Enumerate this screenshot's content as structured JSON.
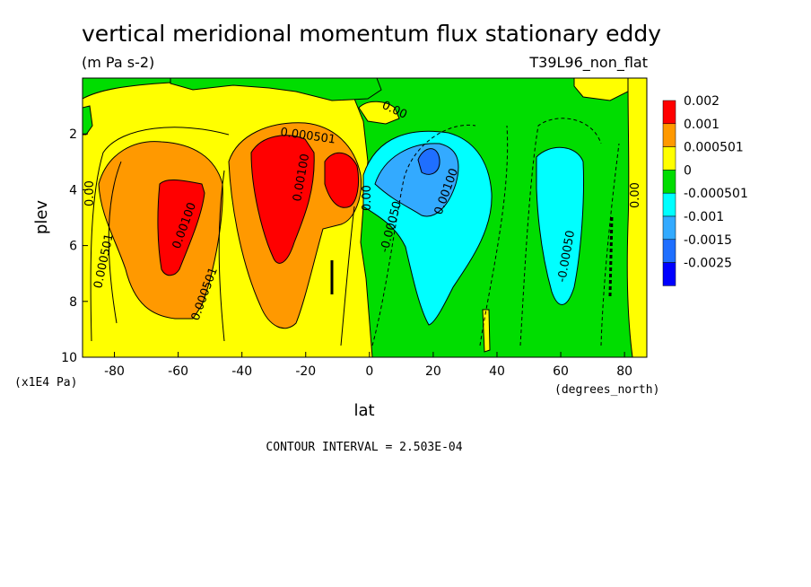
{
  "colors": {
    "c_0_002": "#ff0000",
    "c_0_001": "#ff9900",
    "c_0_000501": "#ffff00",
    "c_0": "#00dd00",
    "c_m0_000501": "#00ffff",
    "c_m0_001": "#33aaff",
    "c_m0_0015": "#1f6fff",
    "c_m0_0025": "#0000ff"
  },
  "chart_data": {
    "type": "heatmap",
    "title": "vertical meridional momentum flux stationary eddy",
    "units": "(m Pa s-2)",
    "run_label": "T39L96_non_flat",
    "xlabel": "lat",
    "xunits": "(degrees_north)",
    "ylabel": "plev",
    "yunits": "(x1E4 Pa)",
    "xlim": [
      -90,
      87
    ],
    "ylim": [
      0,
      10
    ],
    "y_inverted": true,
    "xticks": [
      -80,
      -60,
      -40,
      -20,
      0,
      20,
      40,
      60,
      80
    ],
    "xtick_labels": [
      "-80",
      "-60",
      "-40",
      "-20",
      "0",
      "20",
      "40",
      "60",
      "80"
    ],
    "yticks": [
      2,
      4,
      6,
      8,
      10
    ],
    "ytick_labels": [
      "2",
      "4",
      "6",
      "8",
      "10"
    ],
    "legend": {
      "position": "right",
      "levels": [
        "0.002",
        "0.001",
        "0.000501",
        "0",
        "-0.000501",
        "-0.001",
        "-0.0015",
        "-0.0025"
      ]
    },
    "contour_labels": [
      "0.000501",
      "0.00100",
      "0.000501",
      "0.00100",
      "0.000501",
      "0.00100",
      "0.00",
      "0.00",
      "0.00",
      "-0.00050",
      "-0.00100",
      "-0.00050",
      "0.000501",
      "0.00",
      "0.00"
    ],
    "footnote": "CONTOUR INTERVAL = 2.503E-04",
    "regions": [
      {
        "level": "0",
        "x": [
          -90,
          87
        ],
        "y": [
          0,
          10
        ],
        "note": "background"
      },
      {
        "level": "0.000501",
        "note": "SH broad positive region",
        "x": [
          -90,
          3
        ],
        "y": [
          0.5,
          10
        ]
      },
      {
        "level": "0.001",
        "note": "SH jet lobe west",
        "center": [
          -62,
          4.8
        ]
      },
      {
        "level": "0.002",
        "note": "SH jet core west",
        "center": [
          -60,
          5.2
        ]
      },
      {
        "level": "0.001",
        "note": "SH jet lobe east",
        "center": [
          -25,
          4.2
        ]
      },
      {
        "level": "0.002",
        "note": "SH jet core east",
        "center": [
          -23,
          4.2
        ]
      },
      {
        "level": "0.002",
        "note": "equatorial SH core",
        "center": [
          -8,
          3.9
        ]
      },
      {
        "level": "-0.000501",
        "note": "NH tropical negative lobe",
        "center": [
          20,
          5.5
        ]
      },
      {
        "level": "-0.001",
        "note": "NH tropical stronger",
        "center": [
          19,
          3.8
        ]
      },
      {
        "level": "-0.0015",
        "note": "NH tropical strongest",
        "center": [
          19,
          3.0
        ]
      },
      {
        "level": "-0.000501",
        "note": "NH midlat negative lobe",
        "center": [
          60,
          5.2
        ]
      },
      {
        "level": "0.000501",
        "note": "NH high-lat positive",
        "center": [
          82,
          6
        ]
      }
    ]
  }
}
